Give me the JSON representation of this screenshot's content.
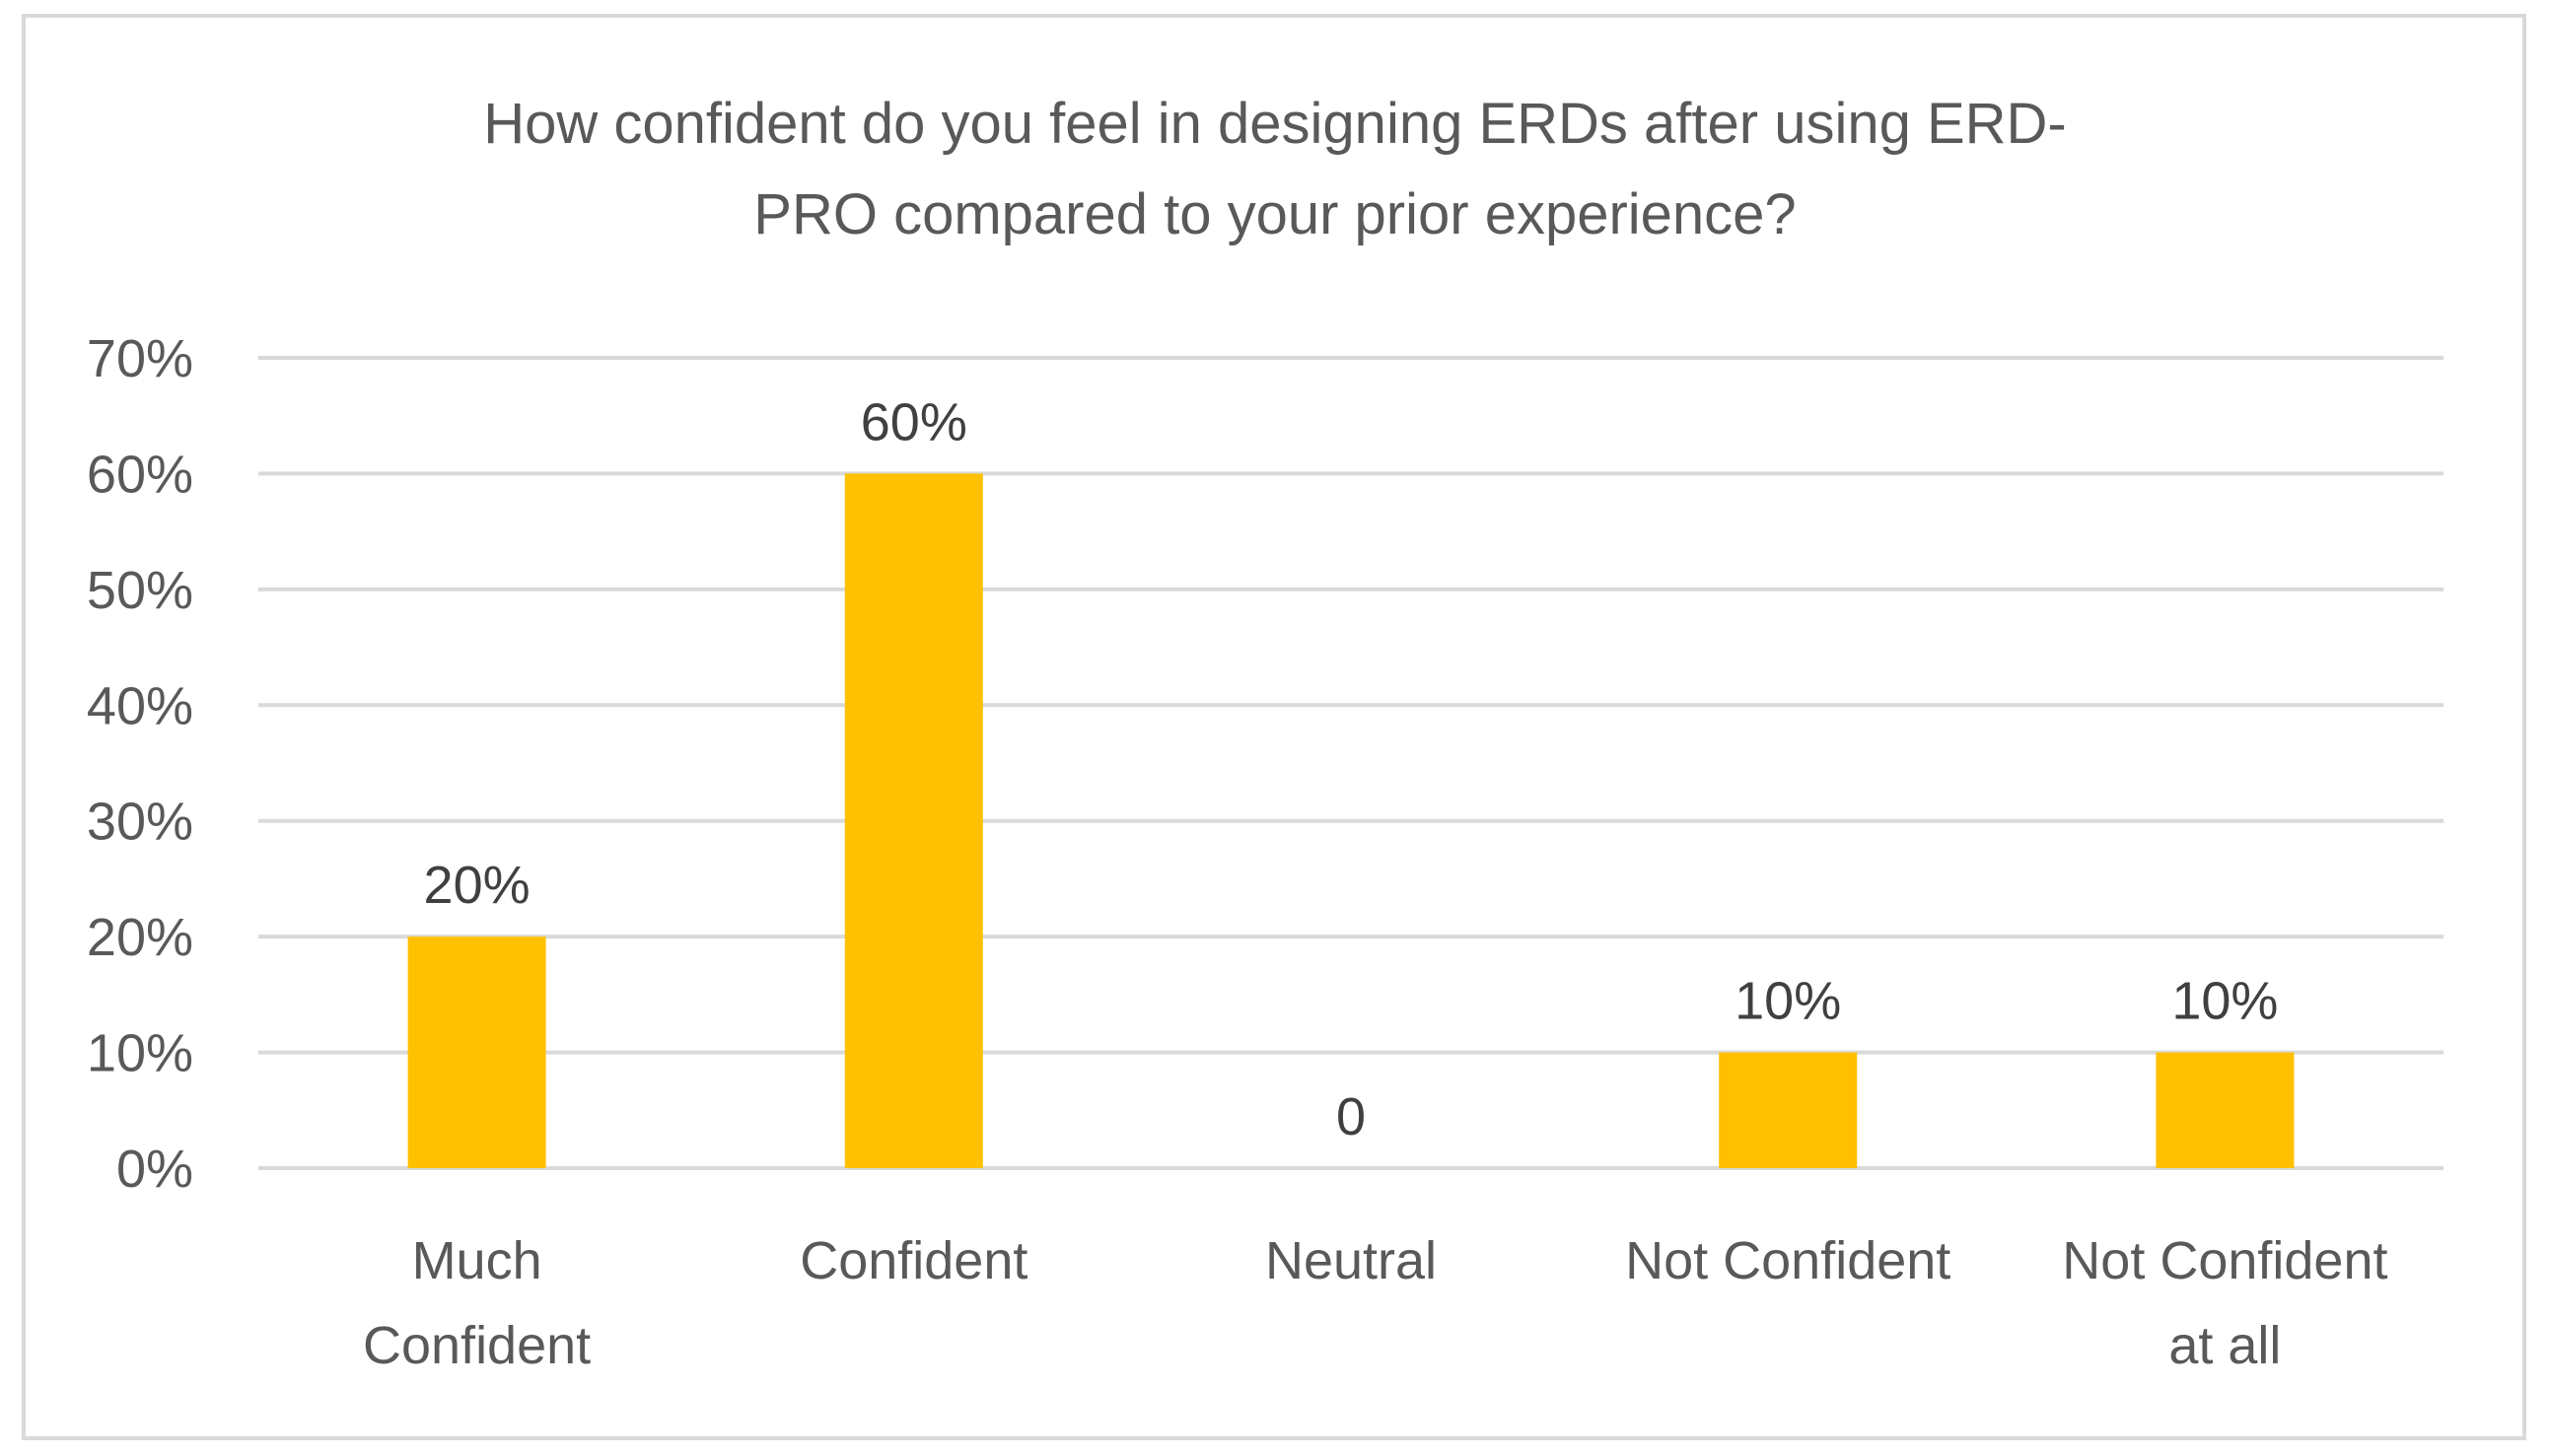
{
  "chart_data": {
    "type": "bar",
    "title_lines": [
      "How confident do you feel in designing ERDs after using ERD-",
      "PRO compared to your prior experience?"
    ],
    "categories": [
      [
        "Much",
        "Confident"
      ],
      [
        "Confident"
      ],
      [
        "Neutral"
      ],
      [
        "Not Confident"
      ],
      [
        "Not Confident",
        "at all"
      ]
    ],
    "values": [
      20,
      60,
      0,
      10,
      10
    ],
    "data_labels": [
      "20%",
      "60%",
      "0",
      "10%",
      "10%"
    ],
    "ylim": [
      0,
      70
    ],
    "yticks": [
      0,
      10,
      20,
      30,
      40,
      50,
      60,
      70
    ],
    "ytick_labels": [
      "0%",
      "10%",
      "20%",
      "30%",
      "40%",
      "50%",
      "60%",
      "70%"
    ],
    "xlabel": "",
    "ylabel": "",
    "grid": true,
    "legend": "none",
    "bar_color": "#ffc000",
    "grid_color": "#d9d9d9",
    "text_color": "#595959"
  }
}
